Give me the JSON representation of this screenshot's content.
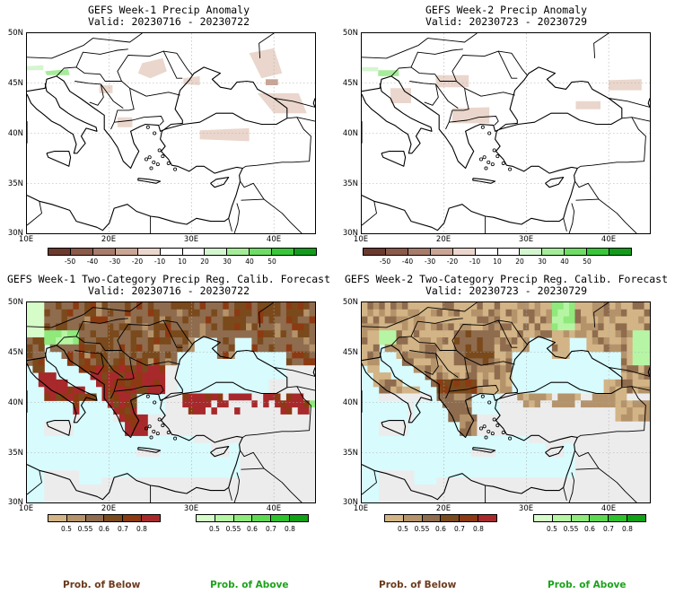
{
  "panels": [
    {
      "title": "GEFS Week-1 Precip Anomaly",
      "valid": "Valid: 20230716 - 20230722",
      "kind": "anom"
    },
    {
      "title": "GEFS Week-2 Precip Anomaly",
      "valid": "Valid: 20230723 - 20230729",
      "kind": "anom"
    },
    {
      "title": "GEFS Week-1 Two-Category Precip Reg. Calib. Forecast",
      "valid": "Valid: 20230716 - 20230722",
      "kind": "prob"
    },
    {
      "title": "GEFS Week-2 Two-Category Precip Reg. Calib. Forecast",
      "valid": "Valid: 20230723 - 20230729",
      "kind": "prob"
    }
  ],
  "lat_labels": [
    "50N",
    "45N",
    "40N",
    "35N",
    "30N"
  ],
  "lon_labels": [
    "10E",
    "20E",
    "30E",
    "40E"
  ],
  "anom_scale": {
    "colors": [
      "#6b3a2e",
      "#8a5a4a",
      "#a77c6c",
      "#c9a596",
      "#ead6cc",
      "#ffffff",
      "#ffffff",
      "#d4f5cf",
      "#a5ec99",
      "#6fdc66",
      "#39c63a",
      "#149a1d"
    ],
    "labels": [
      "-50",
      "-40",
      "-30",
      "-20",
      "-10",
      "10",
      "20",
      "30",
      "40",
      "50"
    ]
  },
  "prob_below": {
    "colors": [
      "#d2b486",
      "#b5936a",
      "#8f6c4e",
      "#7a4a1c",
      "#8c3a12",
      "#a8292b"
    ],
    "labels": [
      "0.5",
      "0.55",
      "0.6",
      "0.7",
      "0.8"
    ]
  },
  "prob_above": {
    "colors": [
      "#d6fcc9",
      "#b6f5a4",
      "#8fe97b",
      "#5fd851",
      "#2ec22d",
      "#10a114"
    ],
    "labels": [
      "0.5",
      "0.55",
      "0.6",
      "0.7",
      "0.8"
    ]
  },
  "footer": {
    "below": "Prob. of Below",
    "above": "Prob. of Above"
  },
  "colors": {
    "sea_prob": "#d8fbfd",
    "land_none_prob": "#ececec",
    "grid": "#aaaaaa",
    "below_text": "#6b3a1e",
    "above_text": "#1aa31a"
  }
}
